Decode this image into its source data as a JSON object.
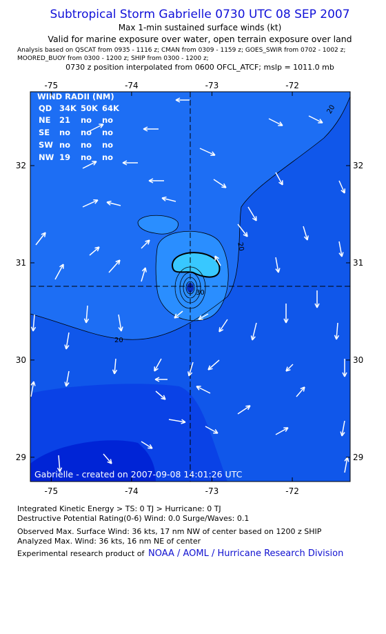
{
  "header": {
    "title": "Subtropical Storm Gabrielle 0730 UTC 08 SEP 2007",
    "subtitle": "Max 1-min sustained surface winds (kt)",
    "validity": "Valid for marine exposure over water, open terrain exposure over land",
    "analysis_lines": [
      "Analysis based on  QSCAT from 0935 - 1116 z;  CMAN from 0309 - 1159 z;  GOES_SWIR from 0702 - 1002 z;",
      "MOORED_BUOY from 0300 - 1200 z;  SHIP from 0300 - 1200 z;"
    ],
    "position_note": "0730 z position interpolated from 0600 OFCL_ATCF; mslp = 1011.0 mb"
  },
  "map": {
    "xlim": [
      -75.26,
      -71.28
    ],
    "ylim": [
      28.75,
      32.76
    ],
    "xticks": [
      -75,
      -74,
      -73,
      -72
    ],
    "yticks": [
      29,
      30,
      31,
      32
    ],
    "contour_labels": [
      "20",
      "20",
      "20",
      "30"
    ],
    "credit": "Gabrielle - created on 2007-09-08 14:01:26 UTC",
    "wind_radii": {
      "title": "WIND RADII (NM)",
      "columns": [
        "QD",
        "34K",
        "50K",
        "64K"
      ],
      "rows": [
        [
          "NE",
          "21",
          "no",
          "no"
        ],
        [
          "SE",
          "no",
          "no",
          "no"
        ],
        [
          "SW",
          "no",
          "no",
          "no"
        ],
        [
          "NW",
          "19",
          "no",
          "no"
        ]
      ]
    }
  },
  "footer": {
    "lines": [
      "Integrated Kinetic Energy > TS: 0 TJ   > Hurricane: 0 TJ",
      "Destructive Potential Rating(0-6)   Wind: 0.0 Surge/Waves: 0.1",
      "Observed Max. Surface Wind: 36 kts, 17 nm NW of center based on 1200 z SHIP",
      "Analyzed Max. Wind: 36 kts, 16 nm NE of center"
    ],
    "credit_prefix": "Experimental research product of",
    "credit_link": "NOAA / AOML / Hurricane Research Division"
  }
}
